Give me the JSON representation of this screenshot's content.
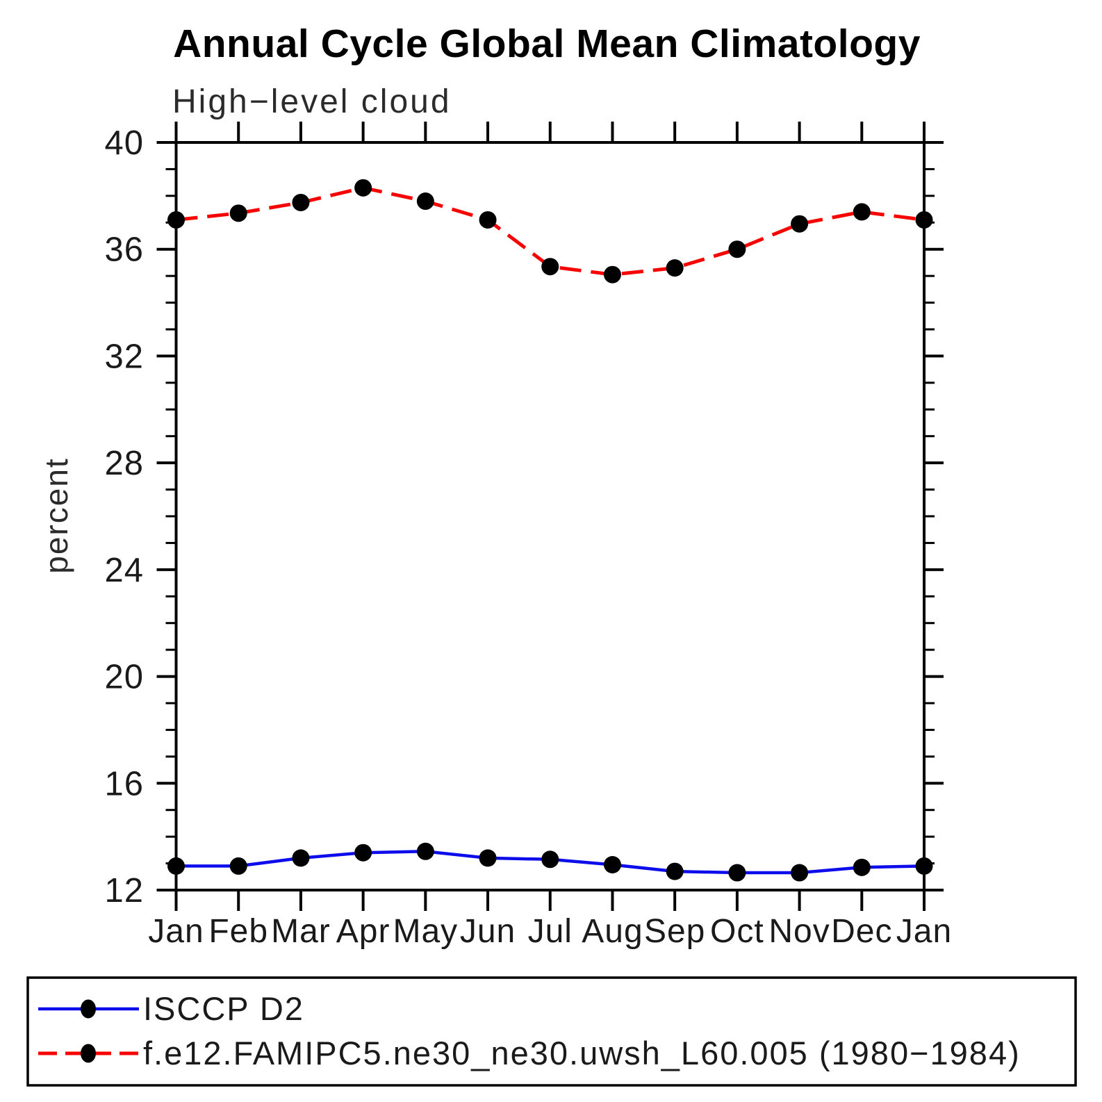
{
  "background_color": "#ffffff",
  "frame_color": "#000000",
  "marker_color": "#000000",
  "chart_data": {
    "type": "line",
    "title": "Annual Cycle Global Mean Climatology",
    "subtitle": "High−level cloud",
    "ylabel": "percent",
    "xlabel": "",
    "ylim": [
      12,
      40
    ],
    "ytick_major_step": 4,
    "ytick_minor_step": 1,
    "grid": "off",
    "legend_position": "bottom-box",
    "categories": [
      "Jan",
      "Feb",
      "Mar",
      "Apr",
      "May",
      "Jun",
      "Jul",
      "Aug",
      "Sep",
      "Oct",
      "Nov",
      "Dec",
      "Jan"
    ],
    "series": [
      {
        "name": "ISCCP D2",
        "style": "solid",
        "color": "#0d0deb",
        "marker": "filled-circle",
        "values": [
          12.9,
          12.9,
          13.2,
          13.4,
          13.45,
          13.2,
          13.15,
          12.95,
          12.7,
          12.65,
          12.65,
          12.85,
          12.9
        ]
      },
      {
        "name": "f.e12.FAMIPC5.ne30_ne30.uwsh_L60.005 (1980−1984)",
        "style": "dashed",
        "color": "#f60400",
        "marker": "filled-circle",
        "values": [
          37.1,
          37.35,
          37.75,
          38.3,
          37.8,
          37.1,
          35.35,
          35.05,
          35.3,
          36.0,
          36.95,
          37.4,
          37.1
        ]
      }
    ]
  }
}
